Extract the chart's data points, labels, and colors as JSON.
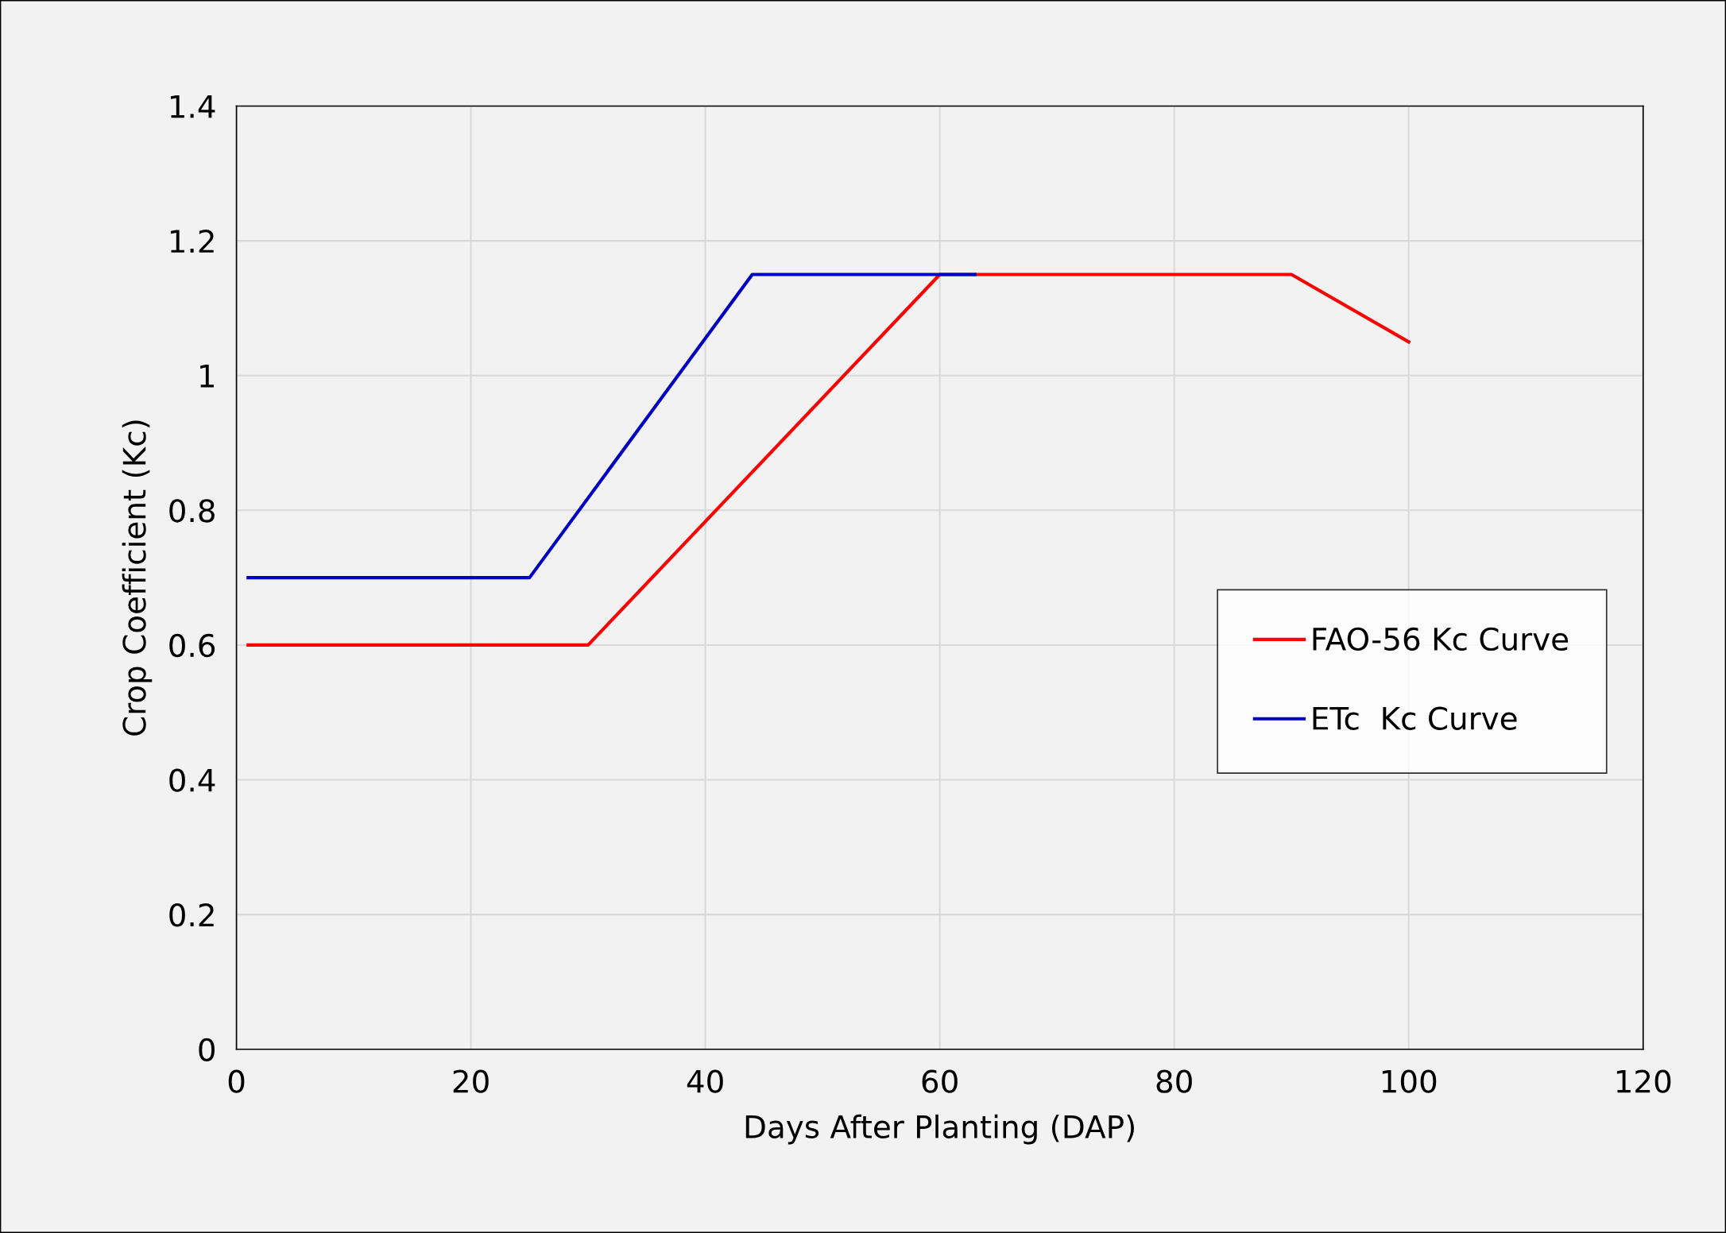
{
  "chart_data": {
    "type": "line",
    "xlabel": "Days After Planting (DAP)",
    "ylabel": "Crop Coefficient (Kc)",
    "xlim": [
      0,
      120
    ],
    "xticks": [
      0,
      20,
      40,
      60,
      80,
      100,
      120
    ],
    "ylim": [
      0,
      1.4
    ],
    "yticks": [
      0,
      {
        "value": 0.2,
        "label": "0.2"
      },
      {
        "value": 0.4,
        "label": "0.4"
      },
      {
        "value": 0.6,
        "label": "0.6"
      },
      {
        "value": 0.8,
        "label": "0.8"
      },
      1,
      {
        "value": 1.2,
        "label": "1.2"
      },
      {
        "value": 1.4,
        "label": "1.4"
      }
    ],
    "grid": true,
    "legend": "right",
    "marker": "none",
    "line_style": "solid",
    "series": [
      {
        "name": "FAO-56 Kc Curve",
        "color": "#ff0000",
        "x": [
          1,
          30,
          60,
          90,
          100
        ],
        "values": [
          0.6,
          0.6,
          1.15,
          1.15,
          1.05
        ]
      },
      {
        "name": "ETc  Kc Curve",
        "color": "#0000c0",
        "x": [
          1,
          25,
          44,
          63
        ],
        "values": [
          0.7,
          0.7,
          1.15,
          1.15
        ]
      }
    ]
  }
}
